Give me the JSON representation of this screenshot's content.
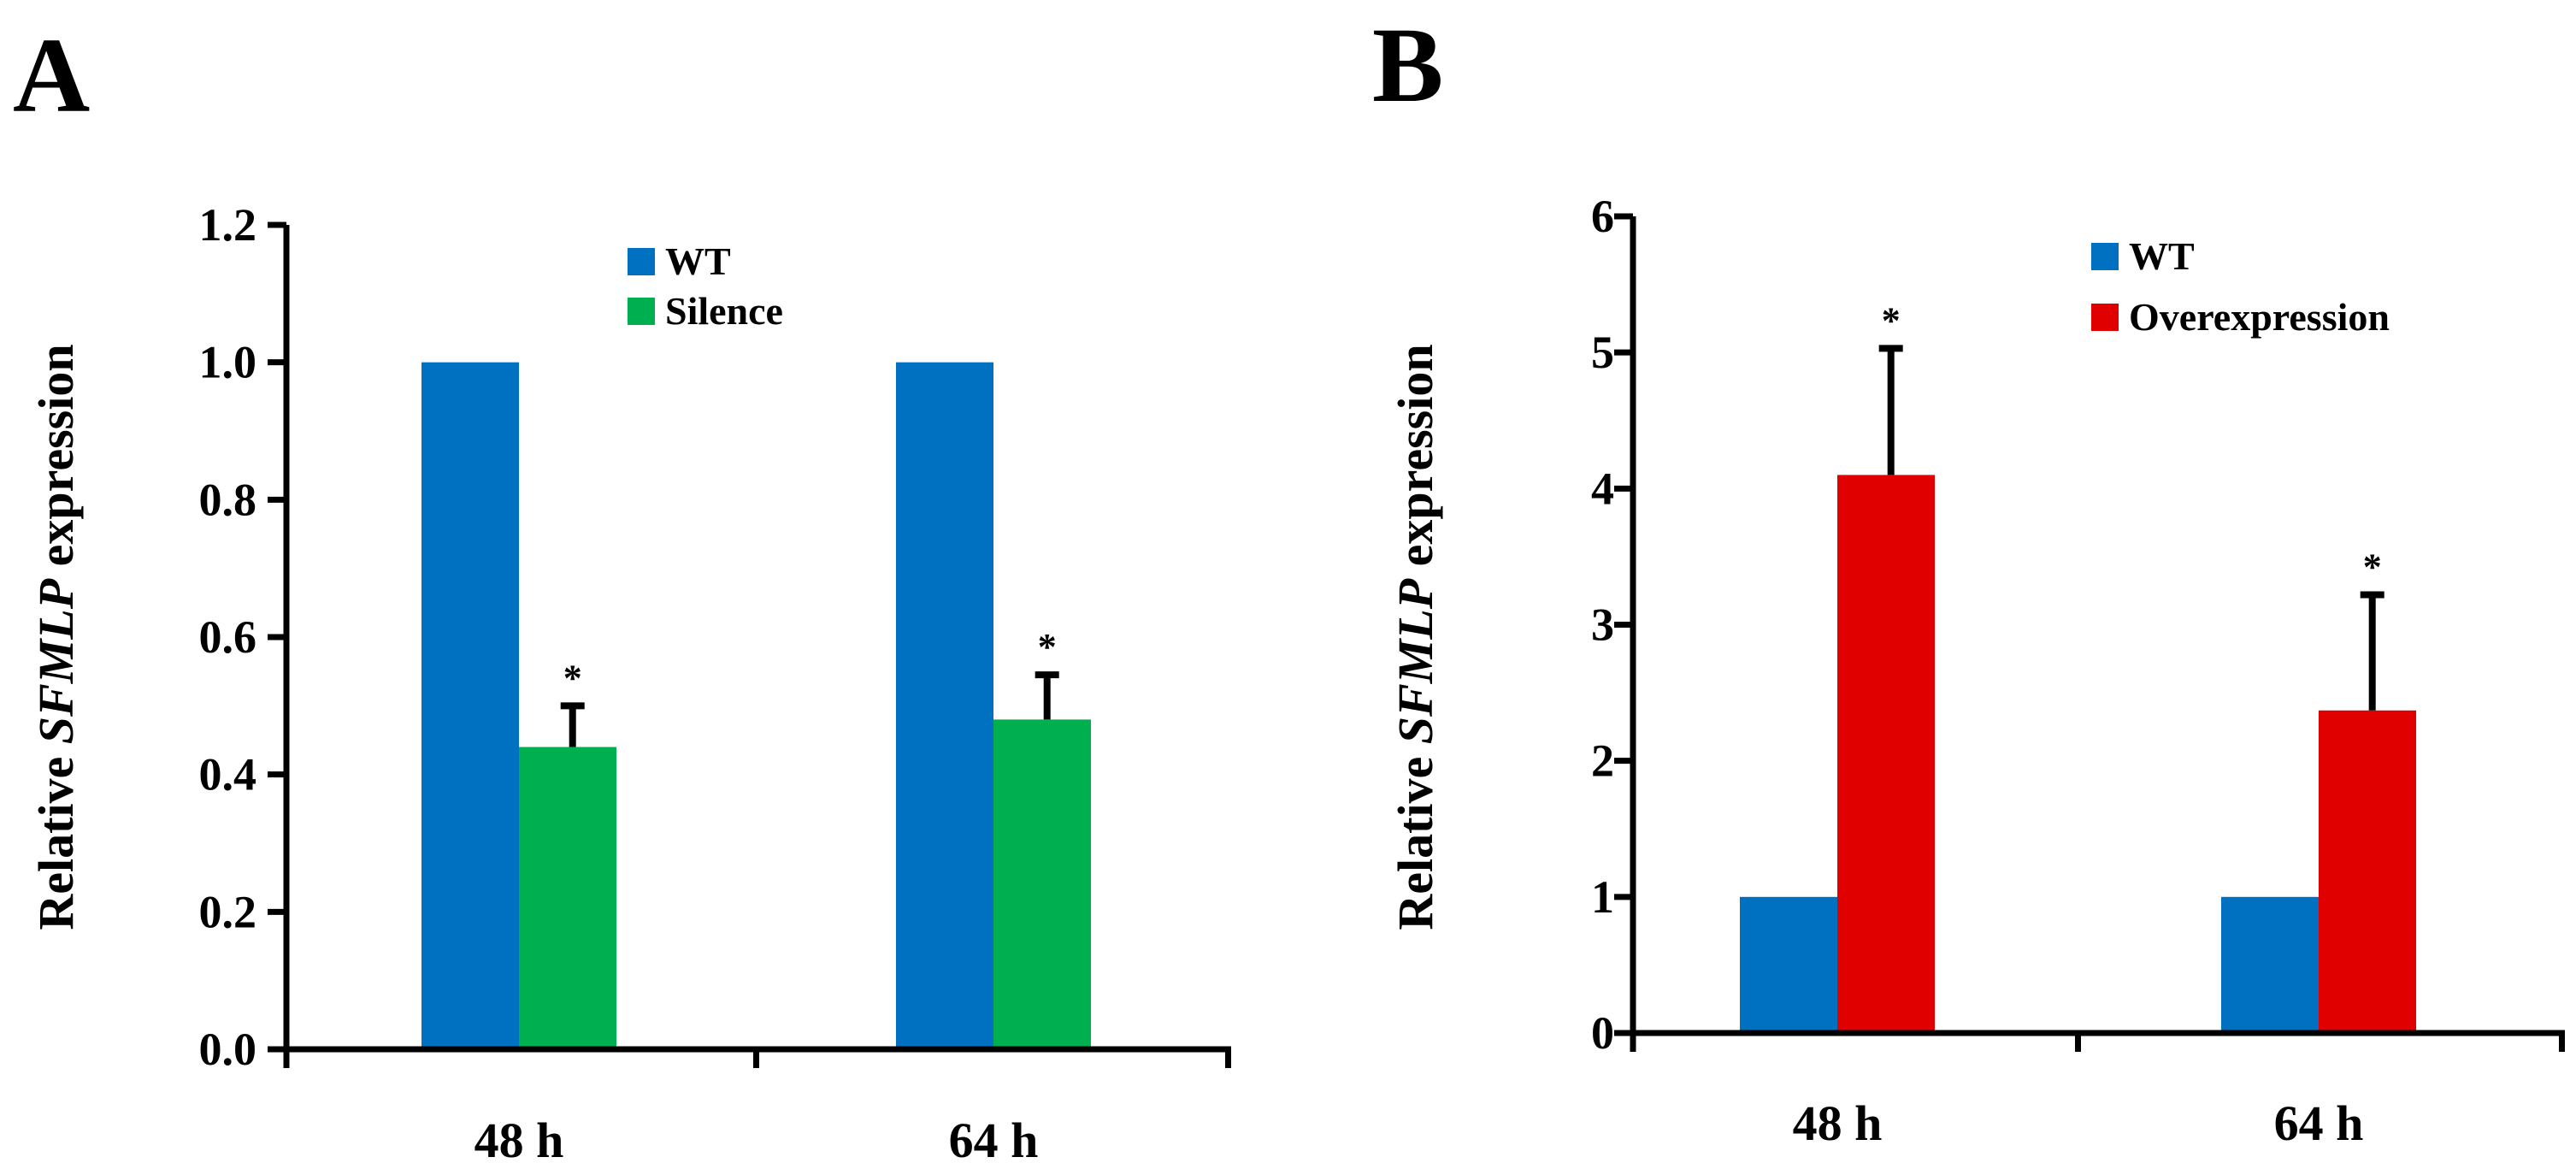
{
  "panels": [
    {
      "label": "A",
      "chart_data": {
        "type": "bar",
        "categories": [
          "48 h",
          "64 h"
        ],
        "series": [
          {
            "name": "WT",
            "values": [
              1.0,
              1.0
            ],
            "errors": [
              0,
              0
            ],
            "color": "#0070C0"
          },
          {
            "name": "Silence",
            "values": [
              0.44,
              0.48
            ],
            "errors": [
              0.06,
              0.065
            ],
            "color": "#00B050"
          }
        ],
        "significance": [
          [
            "",
            ""
          ],
          [
            "*",
            "*"
          ]
        ],
        "ylabel_prefix": "Relative ",
        "ylabel_gene": "SFMLP",
        "ylabel_suffix": " expression",
        "ylim": [
          0,
          1.2
        ],
        "yticks": [
          0,
          0.2,
          0.4,
          0.6,
          0.8,
          1.0,
          1.2
        ],
        "ytick_labels": [
          "0.0",
          "0.2",
          "0.4",
          "0.6",
          "0.8",
          "1.0",
          "1.2"
        ],
        "legend_position": "top-right"
      }
    },
    {
      "label": "B",
      "chart_data": {
        "type": "bar",
        "categories": [
          "48 h",
          "64 h"
        ],
        "series": [
          {
            "name": "WT",
            "values": [
              1,
              1
            ],
            "errors": [
              0,
              0
            ],
            "color": "#0070C0"
          },
          {
            "name": "Overexpression",
            "values": [
              4.1,
              2.37
            ],
            "errors": [
              0.93,
              0.85
            ],
            "color": "#E00000"
          }
        ],
        "significance": [
          [
            "",
            ""
          ],
          [
            "*",
            "*"
          ]
        ],
        "ylabel_prefix": "Relative ",
        "ylabel_gene": "SFMLP",
        "ylabel_suffix": " expression",
        "ylim": [
          0,
          6
        ],
        "yticks": [
          0,
          1,
          2,
          3,
          4,
          5,
          6
        ],
        "ytick_labels": [
          "0",
          "1",
          "2",
          "3",
          "4",
          "5",
          "6"
        ],
        "legend_position": "top-right"
      }
    }
  ]
}
